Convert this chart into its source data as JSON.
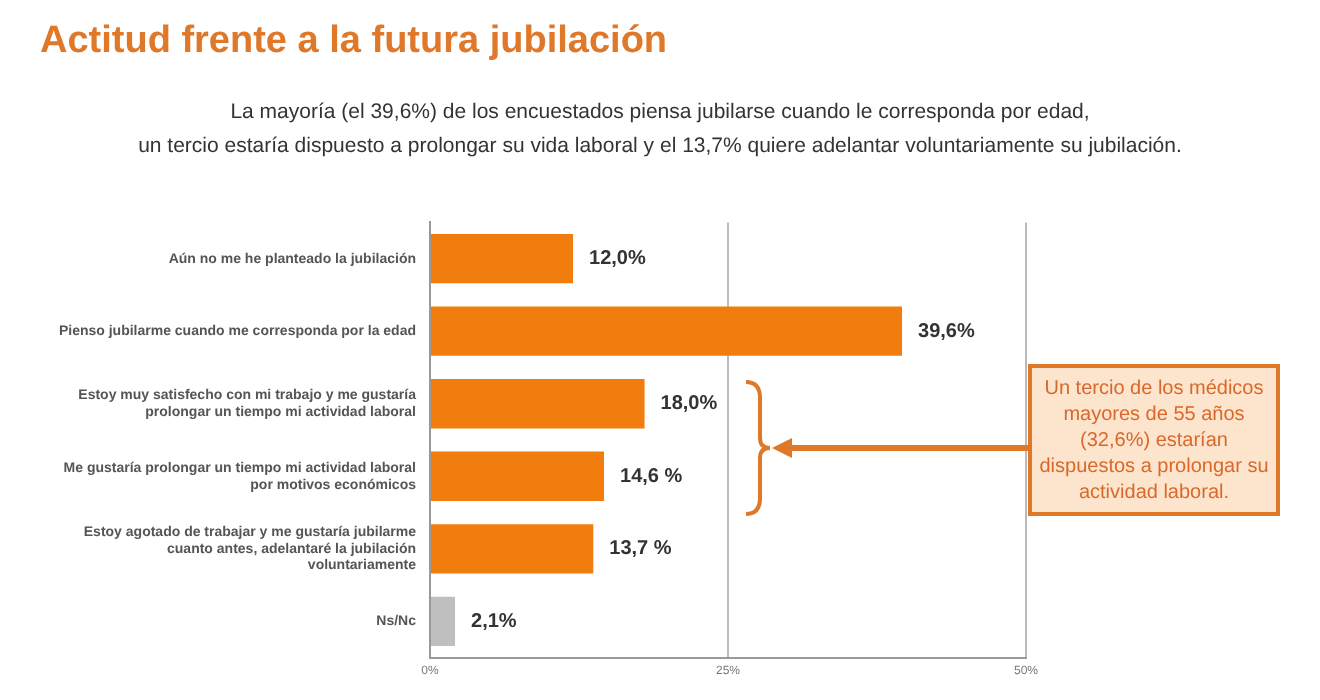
{
  "chart_data": {
    "type": "bar",
    "orientation": "horizontal",
    "title": "Actitud frente a la futura jubilación",
    "subtitle": "La mayoría (el 39,6%) de los encuestados piensa jubilarse cuando le corresponda por edad,\nun tercio estaría dispuesto a prolongar su vida laboral y el 13,7%  quiere adelantar voluntariamente su jubilación.",
    "categories": [
      "Aún no me he planteado la jubilación",
      "Pienso jubilarme cuando me corresponda por la edad",
      "Estoy muy satisfecho con mi trabajo y me gustaría prolongar un tiempo mi actividad laboral",
      "Me gustaría prolongar un tiempo mi actividad laboral por motivos económicos",
      "Estoy agotado de trabajar y me gustaría jubilarme cuanto antes, adelantaré la jubilación voluntariamente",
      "Ns/Nc"
    ],
    "values": [
      12.0,
      39.6,
      18.0,
      14.6,
      13.7,
      2.1
    ],
    "value_labels": [
      "12,0%",
      "39,6%",
      "18,0%",
      "14,6 %",
      "13,7 %",
      "2,1%"
    ],
    "colors": [
      "#f07d0e",
      "#f07d0e",
      "#f07d0e",
      "#f07d0e",
      "#f07d0e",
      "#bfbfbf"
    ],
    "xlim": [
      0,
      50
    ],
    "xticks": [
      {
        "value": 0,
        "label": "0%"
      },
      {
        "value": 25,
        "label": "25%"
      },
      {
        "value": 50,
        "label": "50%"
      }
    ],
    "grid": "x",
    "annotations": [
      "Un tercio de los  médicos mayores de 55 años (32,6%) estarían dispuestos a prolongar su actividad laboral."
    ]
  }
}
